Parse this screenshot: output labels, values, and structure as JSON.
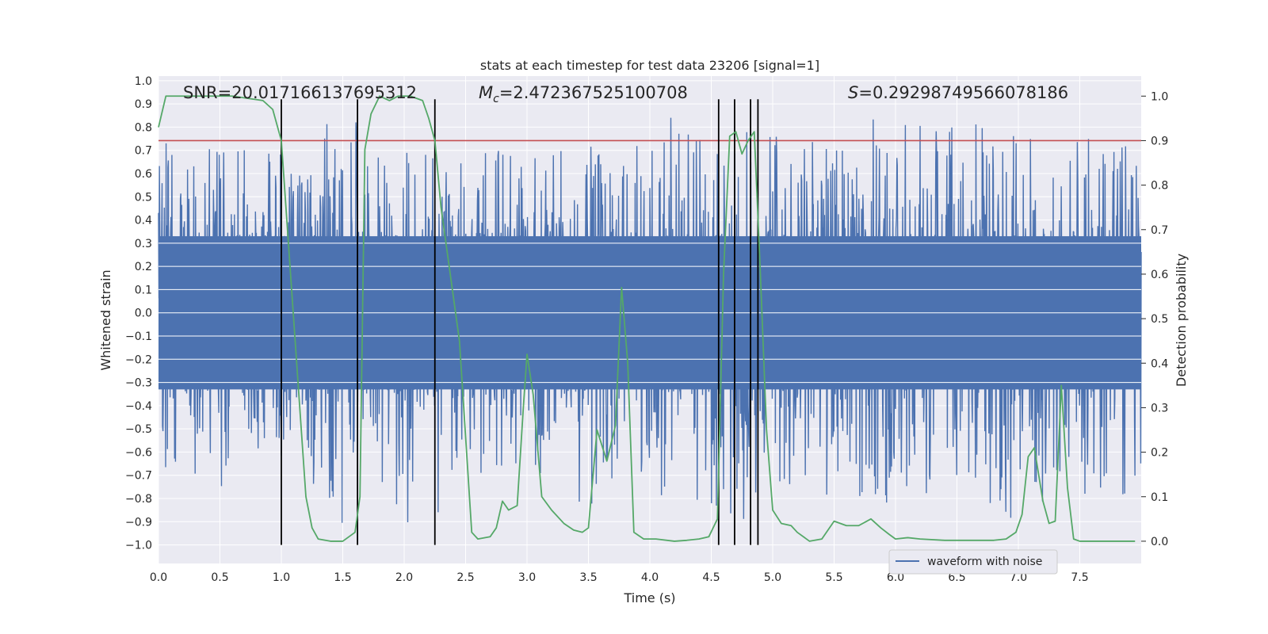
{
  "chart_data": {
    "type": "line",
    "title": "stats at each timestep for test data 23206 [signal=1]",
    "xlabel": "Time (s)",
    "ylabel": "Whitened strain",
    "y2label": "Detection probability",
    "xlim": [
      0.0,
      8.0
    ],
    "ylim": [
      -1.08,
      1.02
    ],
    "y2lim": [
      -0.05,
      1.045
    ],
    "x_ticks": [
      0.0,
      0.5,
      1.0,
      1.5,
      2.0,
      2.5,
      3.0,
      3.5,
      4.0,
      4.5,
      5.0,
      5.5,
      6.0,
      6.5,
      7.0,
      7.5
    ],
    "x_tick_labels": [
      "0.0",
      "0.5",
      "1.0",
      "1.5",
      "2.0",
      "2.5",
      "3.0",
      "3.5",
      "4.0",
      "4.5",
      "5.0",
      "5.5",
      "6.0",
      "6.5",
      "7.0",
      "7.5"
    ],
    "y_ticks": [
      1.0,
      0.9,
      0.8,
      0.7,
      0.6,
      0.5,
      0.4,
      0.3,
      0.2,
      0.1,
      0.0,
      -0.1,
      -0.2,
      -0.3,
      -0.4,
      -0.5,
      -0.6,
      -0.7,
      -0.8,
      -0.9,
      -1.0
    ],
    "y_tick_labels": [
      "1.0",
      "0.9",
      "0.8",
      "0.7",
      "0.6",
      "0.5",
      "0.4",
      "0.3",
      "0.2",
      "0.1",
      "0.0",
      "−0.1",
      "−0.2",
      "−0.3",
      "−0.4",
      "−0.5",
      "−0.6",
      "−0.7",
      "−0.8",
      "−0.9",
      "−1.0"
    ],
    "y2_ticks": [
      1.0,
      0.9,
      0.8,
      0.7,
      0.6,
      0.5,
      0.4,
      0.3,
      0.2,
      0.1,
      0.0
    ],
    "y2_tick_labels": [
      "1.0",
      "0.9",
      "0.8",
      "0.7",
      "0.6",
      "0.5",
      "0.4",
      "0.3",
      "0.2",
      "0.1",
      "0.0"
    ],
    "grid": true,
    "legend_placement": "lower-right",
    "annotations": {
      "snr": "SNR=20.017166137695312",
      "mc_symbol": "M",
      "mc_sub": "c",
      "mc_value": "=2.472367525100708",
      "s_symbol": "S",
      "s_value": "=0.29298749566078186"
    },
    "waveform": {
      "name": "waveform with noise",
      "color": "#4c72b0",
      "core_amplitude": 0.33,
      "envelope_x": [
        0.0,
        0.5,
        1.0,
        1.5,
        1.6,
        2.0,
        2.5,
        3.0,
        3.5,
        4.0,
        4.5,
        4.9,
        5.5,
        6.0,
        6.5,
        7.0,
        7.5,
        8.0
      ],
      "envelope_max": [
        0.76,
        0.7,
        0.73,
        0.85,
        0.91,
        0.72,
        0.73,
        0.7,
        0.75,
        0.85,
        0.85,
        0.79,
        0.82,
        0.86,
        0.82,
        0.8,
        0.8,
        0.7
      ],
      "envelope_min": [
        -0.65,
        -0.79,
        -0.63,
        -0.91,
        -0.55,
        -1.0,
        -0.76,
        -0.65,
        -0.85,
        -0.8,
        -0.85,
        -0.92,
        -0.78,
        -0.83,
        -0.77,
        -0.9,
        -0.8,
        -0.78
      ]
    },
    "probability": {
      "color": "#55a868",
      "x": [
        0.0,
        0.06,
        0.3,
        0.6,
        0.85,
        0.93,
        1.0,
        1.05,
        1.1,
        1.15,
        1.2,
        1.25,
        1.3,
        1.4,
        1.5,
        1.55,
        1.6,
        1.64,
        1.68,
        1.73,
        1.8,
        1.88,
        1.95,
        2.05,
        2.15,
        2.2,
        2.25,
        2.3,
        2.35,
        2.45,
        2.55,
        2.6,
        2.7,
        2.75,
        2.8,
        2.85,
        2.92,
        2.97,
        3.0,
        3.05,
        3.12,
        3.2,
        3.3,
        3.38,
        3.45,
        3.5,
        3.57,
        3.65,
        3.72,
        3.77,
        3.82,
        3.87,
        3.95,
        4.05,
        4.2,
        4.3,
        4.4,
        4.48,
        4.55,
        4.6,
        4.65,
        4.7,
        4.75,
        4.8,
        4.85,
        4.9,
        4.95,
        5.0,
        5.07,
        5.15,
        5.2,
        5.3,
        5.4,
        5.5,
        5.6,
        5.7,
        5.8,
        5.88,
        5.95,
        6.0,
        6.1,
        6.2,
        6.4,
        6.6,
        6.8,
        6.9,
        6.98,
        7.03,
        7.08,
        7.13,
        7.2,
        7.25,
        7.3,
        7.35,
        7.4,
        7.45,
        7.5,
        7.6,
        7.75,
        7.95
      ],
      "y": [
        0.93,
        1.0,
        1.0,
        1.0,
        0.99,
        0.97,
        0.9,
        0.7,
        0.5,
        0.3,
        0.1,
        0.03,
        0.005,
        0.0,
        0.0,
        0.01,
        0.02,
        0.1,
        0.88,
        0.96,
        1.0,
        0.99,
        1.0,
        1.0,
        0.99,
        0.95,
        0.9,
        0.75,
        0.65,
        0.45,
        0.02,
        0.005,
        0.01,
        0.03,
        0.09,
        0.07,
        0.08,
        0.3,
        0.42,
        0.33,
        0.1,
        0.07,
        0.04,
        0.025,
        0.02,
        0.03,
        0.25,
        0.18,
        0.26,
        0.57,
        0.4,
        0.02,
        0.005,
        0.005,
        0.0,
        0.002,
        0.005,
        0.01,
        0.05,
        0.6,
        0.91,
        0.92,
        0.87,
        0.9,
        0.92,
        0.6,
        0.25,
        0.07,
        0.04,
        0.035,
        0.02,
        0.0,
        0.005,
        0.045,
        0.035,
        0.035,
        0.05,
        0.03,
        0.015,
        0.005,
        0.008,
        0.005,
        0.002,
        0.002,
        0.002,
        0.005,
        0.02,
        0.06,
        0.19,
        0.21,
        0.09,
        0.04,
        0.045,
        0.35,
        0.12,
        0.005,
        0.0,
        0.0,
        0.0,
        0.0
      ]
    },
    "threshold": {
      "y2": 0.9,
      "color": "#c44e52"
    },
    "vlines": {
      "x": [
        1.0,
        1.62,
        2.25,
        4.56,
        4.69,
        4.82,
        4.88
      ],
      "color": "#000000"
    }
  }
}
